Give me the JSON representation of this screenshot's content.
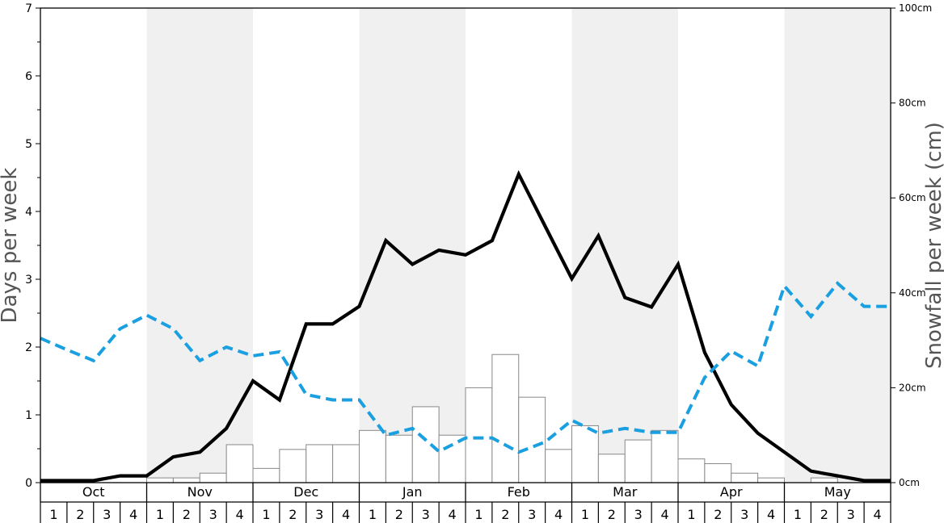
{
  "chart_data": {
    "type": "bar",
    "months": [
      "Oct",
      "Nov",
      "Dec",
      "Jan",
      "Feb",
      "Mar",
      "Apr",
      "May"
    ],
    "weeks": [
      "1",
      "2",
      "3",
      "4"
    ],
    "ylabel_left": "Days per week",
    "ylabel_right": "Snowfall per week (cm)",
    "ylim_left": [
      0,
      7
    ],
    "ylim_right": [
      0,
      100
    ],
    "left_ticks": [
      "0",
      "1",
      "2",
      "3",
      "4",
      "5",
      "6",
      "7"
    ],
    "right_ticks": [
      "0cm",
      "20cm",
      "40cm",
      "60cm",
      "80cm",
      "100cm"
    ],
    "grid": false,
    "shaded_months": [
      "Nov",
      "Jan",
      "Mar",
      "May"
    ],
    "colors": {
      "shade": "#f0f0f0",
      "black_line": "#000000",
      "blue_line": "#1a9fe0",
      "bar_fill": "#ffffff",
      "bar_stroke": "#888888"
    },
    "series": [
      {
        "type": "bar",
        "axis": "right",
        "values": [
          0,
          0,
          0,
          0,
          1,
          1,
          2,
          8,
          3,
          7,
          8,
          8,
          11,
          10,
          16,
          10,
          20,
          27,
          18,
          7,
          12,
          6,
          9,
          11,
          5,
          4,
          2,
          1,
          0,
          1,
          0,
          0
        ]
      },
      {
        "type": "line",
        "axis": "left",
        "style": "solid",
        "values": [
          0.03,
          0.03,
          0.03,
          0.1,
          0.1,
          0.38,
          0.45,
          0.8,
          1.5,
          1.22,
          2.34,
          2.34,
          2.6,
          3.57,
          3.22,
          3.43,
          3.36,
          3.57,
          4.55,
          3.78,
          3.01,
          3.64,
          2.73,
          2.59,
          3.22,
          1.92,
          1.15,
          0.73,
          0.45,
          0.17,
          0.1,
          0.03,
          0.03
        ]
      },
      {
        "type": "line",
        "axis": "left",
        "style": "dashed",
        "values": [
          2.13,
          1.96,
          1.8,
          2.27,
          2.47,
          2.27,
          1.8,
          2.0,
          1.87,
          1.93,
          1.3,
          1.22,
          1.22,
          0.7,
          0.8,
          0.46,
          0.66,
          0.66,
          0.45,
          0.6,
          0.92,
          0.73,
          0.8,
          0.74,
          0.74,
          1.55,
          1.94,
          1.72,
          2.9,
          2.45,
          2.94,
          2.6,
          2.6
        ]
      }
    ]
  }
}
